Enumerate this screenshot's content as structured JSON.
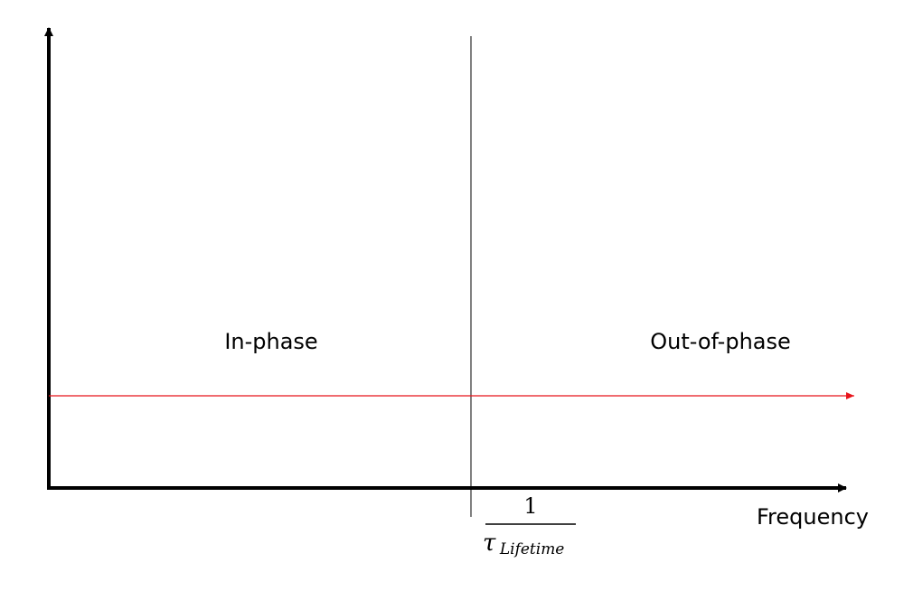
{
  "labels": {
    "in_phase": "In-phase",
    "out_of_phase": "Out-of-phase",
    "x_axis": "Frequency"
  },
  "threshold_label": {
    "numerator": "1",
    "denominator_symbol": "τ",
    "denominator_subscript": "Lifetime"
  },
  "colors": {
    "axes": "#000000",
    "divider": "#000000",
    "signal_line": "#e8141b"
  }
}
